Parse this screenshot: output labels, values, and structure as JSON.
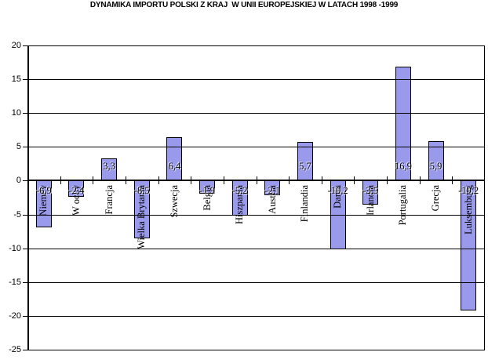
{
  "title": "DYNAMIKA IMPORTU POLSKI Z KRAJ  W UNII EUROPEJSKIEJ W LATACH 1998 -1999",
  "chart_data": {
    "type": "bar",
    "title": "DYNAMIKA IMPORTU POLSKI Z KRAJ  W UNII EUROPEJSKIEJ W LATACH 1998 -1999",
    "categories": [
      "Niemcy",
      "W ochy",
      "Francja",
      "Wielka Brytania",
      "Szwecja",
      "Belgia",
      "Hiszpania",
      "Austria",
      "Finlandia",
      "Dania",
      "Irlandia",
      "Portugalia",
      "Grecja",
      "Luksemburg"
    ],
    "values": [
      -6.9,
      -2.4,
      3.3,
      -8.5,
      6.4,
      -1.9,
      -5.2,
      -2.1,
      5.7,
      -10.2,
      -3.5,
      16.9,
      5.9,
      -19.2
    ],
    "value_labels": [
      "-6,9",
      "-2,4",
      "3,3",
      "-8,5",
      "6,4",
      "-1,9",
      "-5,2",
      "-2,1",
      "5,7",
      "-10,2",
      "-3,5",
      "16,9",
      "5,9",
      "-19,2"
    ],
    "xlabel": "",
    "ylabel": "",
    "ylim": [
      -25,
      20
    ],
    "ytick_interval": 5,
    "yticks": [
      "20",
      "15",
      "10",
      "5",
      "0",
      "-5",
      "-10",
      "-15",
      "-20",
      "-25"
    ],
    "grid": true,
    "legend": "none",
    "bar_color": "#9A9AEC",
    "bar_border_color": "#000000",
    "gridline_color": "#000000",
    "background_color": "#FFFFFF"
  }
}
